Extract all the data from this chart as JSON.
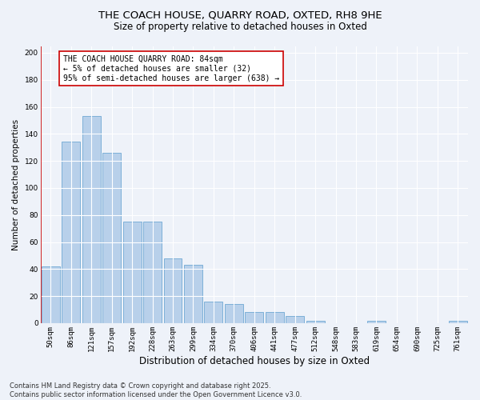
{
  "title_line1": "THE COACH HOUSE, QUARRY ROAD, OXTED, RH8 9HE",
  "title_line2": "Size of property relative to detached houses in Oxted",
  "xlabel": "Distribution of detached houses by size in Oxted",
  "ylabel": "Number of detached properties",
  "bar_color": "#b8d0ea",
  "bar_edge_color": "#6fa8d4",
  "categories": [
    "50sqm",
    "86sqm",
    "121sqm",
    "157sqm",
    "192sqm",
    "228sqm",
    "263sqm",
    "299sqm",
    "334sqm",
    "370sqm",
    "406sqm",
    "441sqm",
    "477sqm",
    "512sqm",
    "548sqm",
    "583sqm",
    "619sqm",
    "654sqm",
    "690sqm",
    "725sqm",
    "761sqm"
  ],
  "values": [
    42,
    134,
    153,
    126,
    75,
    75,
    48,
    43,
    16,
    14,
    8,
    8,
    5,
    2,
    0,
    0,
    2,
    0,
    0,
    0,
    2
  ],
  "ylim": [
    0,
    205
  ],
  "yticks": [
    0,
    20,
    40,
    60,
    80,
    100,
    120,
    140,
    160,
    180,
    200
  ],
  "annotation_line1": "THE COACH HOUSE QUARRY ROAD: 84sqm",
  "annotation_line2": "← 5% of detached houses are smaller (32)",
  "annotation_line3": "95% of semi-detached houses are larger (638) →",
  "vline_x": -0.5,
  "footer_text": "Contains HM Land Registry data © Crown copyright and database right 2025.\nContains public sector information licensed under the Open Government Licence v3.0.",
  "background_color": "#eef2f9",
  "grid_color": "#ffffff",
  "annotation_box_color": "#ffffff",
  "annotation_box_edge_color": "#cc0000",
  "vline_color": "#cc0000",
  "title1_fontsize": 9.5,
  "title2_fontsize": 8.5,
  "ylabel_fontsize": 7.5,
  "xlabel_fontsize": 8.5,
  "tick_fontsize": 6.5,
  "annot_fontsize": 7.0,
  "footer_fontsize": 6.0
}
